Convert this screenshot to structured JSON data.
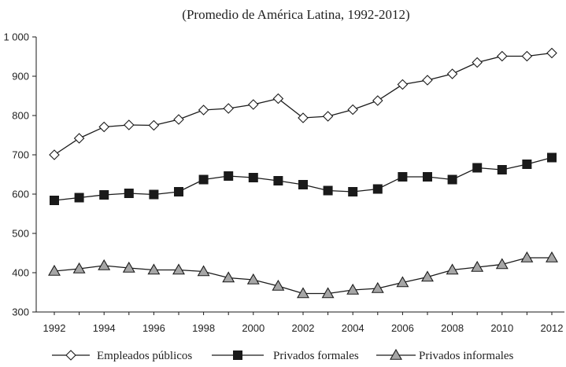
{
  "chart_data": {
    "type": "line",
    "title": "(Promedio de América Latina, 1992-2012)",
    "xlabel": "",
    "ylabel": "",
    "x": [
      1992,
      1993,
      1994,
      1995,
      1996,
      1997,
      1998,
      1999,
      2000,
      2001,
      2002,
      2003,
      2004,
      2005,
      2006,
      2007,
      2008,
      2009,
      2010,
      2011,
      2012
    ],
    "x_tick_labels": [
      "1992",
      "1994",
      "1996",
      "1998",
      "2000",
      "2002",
      "2004",
      "2006",
      "2008",
      "2010",
      "2012"
    ],
    "y_tick_labels": [
      "300",
      "400",
      "500",
      "600",
      "700",
      "800",
      "900",
      "1 000"
    ],
    "y_ticks": [
      300,
      400,
      500,
      600,
      700,
      800,
      900,
      1000
    ],
    "xlim": [
      1992,
      2012
    ],
    "ylim": [
      300,
      1000
    ],
    "grid": false,
    "legend_position": "bottom",
    "series": [
      {
        "name": "Empleados públicos",
        "marker": "diamond",
        "marker_fill": "#ffffff",
        "line_color": "#1a1a1a",
        "values": [
          700,
          742,
          771,
          776,
          775,
          790,
          814,
          818,
          828,
          843,
          794,
          798,
          815,
          838,
          879,
          890,
          906,
          935,
          951,
          951,
          959
        ]
      },
      {
        "name": "Privados formales",
        "marker": "square",
        "marker_fill": "#1a1a1a",
        "line_color": "#1a1a1a",
        "values": [
          584,
          591,
          598,
          602,
          599,
          606,
          637,
          646,
          642,
          634,
          624,
          609,
          606,
          613,
          644,
          644,
          637,
          667,
          662,
          676,
          693
        ]
      },
      {
        "name": "Privados informales",
        "marker": "triangle",
        "marker_fill": "#a6a6a6",
        "line_color": "#1a1a1a",
        "values": [
          404,
          410,
          418,
          412,
          407,
          407,
          403,
          387,
          382,
          366,
          347,
          347,
          356,
          360,
          375,
          389,
          407,
          414,
          421,
          438,
          438
        ]
      }
    ]
  }
}
